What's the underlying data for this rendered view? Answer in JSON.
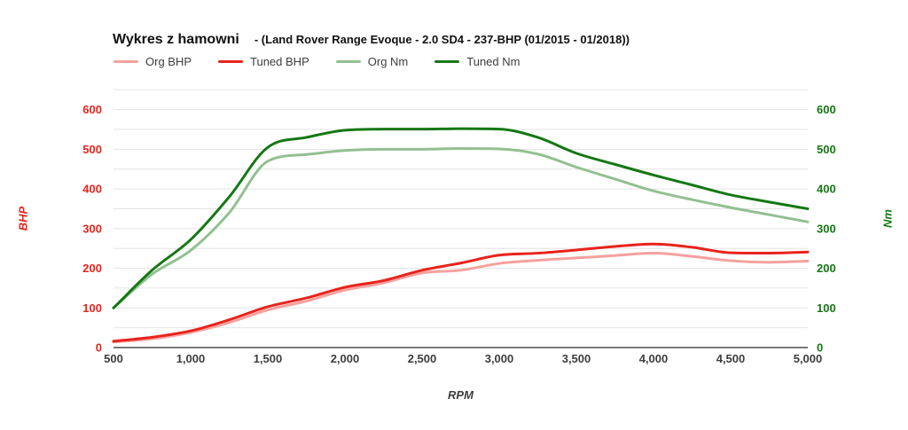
{
  "title": {
    "main": "Wykres z hamowni",
    "sub": "- (Land Rover Range Evoque - 2.0 SD4 - 237-BHP (01/2015 - 01/2018))"
  },
  "colors": {
    "org_bhp": "#F5A19E",
    "tuned_bhp": "#E8231C",
    "org_nm": "#93C091",
    "tuned_nm": "#147814",
    "gridline": "#E4E4E4",
    "baseline": "#7A7A7A",
    "x_tick_text": "#3D3D3D",
    "legend_text": "#3D3D3D"
  },
  "legend": [
    {
      "label": "Org BHP",
      "color": "#F5A19E"
    },
    {
      "label": "Tuned BHP",
      "color": "#E8231C"
    },
    {
      "label": "Org Nm",
      "color": "#93C091"
    },
    {
      "label": "Tuned Nm",
      "color": "#147814"
    }
  ],
  "chart_data": {
    "type": "line",
    "title": "Wykres z hamowni - (Land Rover Range Evoque - 2.0 SD4 - 237-BHP (01/2015 - 01/2018))",
    "xlabel": "RPM",
    "x": [
      500,
      750,
      1000,
      1250,
      1500,
      1750,
      2000,
      2250,
      2500,
      2750,
      3000,
      3250,
      3500,
      3750,
      4000,
      4250,
      4500,
      4750,
      5000
    ],
    "x_ticks": [
      "500",
      "1,000",
      "1,500",
      "2,000",
      "2,500",
      "3,000",
      "3,500",
      "4,000",
      "4,500",
      "5,000"
    ],
    "x_tick_values": [
      500,
      1000,
      1500,
      2000,
      2500,
      3000,
      3500,
      4000,
      4500,
      5000
    ],
    "grid": true,
    "legend_position": "top",
    "y_left": {
      "label": "BHP",
      "min": 0,
      "max": 650,
      "tick_step": 100,
      "grid_step": 50,
      "color": "#E8231C",
      "ticks": [
        "0",
        "100",
        "200",
        "300",
        "400",
        "500",
        "600"
      ]
    },
    "y_right": {
      "label": "Nm",
      "min": 0,
      "max": 650,
      "tick_step": 100,
      "grid_step": 50,
      "color": "#147814",
      "ticks": [
        "0",
        "100",
        "200",
        "300",
        "400",
        "500",
        "600"
      ]
    },
    "series": [
      {
        "name": "Org BHP",
        "axis": "left",
        "color": "#F5A19E",
        "values": [
          14,
          22,
          38,
          63,
          95,
          117,
          145,
          163,
          188,
          195,
          212,
          220,
          226,
          232,
          238,
          230,
          219,
          215,
          218
        ]
      },
      {
        "name": "Tuned BHP",
        "axis": "left",
        "color": "#E8231C",
        "values": [
          16,
          26,
          42,
          70,
          103,
          125,
          152,
          169,
          195,
          213,
          233,
          238,
          246,
          255,
          261,
          253,
          239,
          238,
          241
        ]
      },
      {
        "name": "Org Nm",
        "axis": "right",
        "color": "#93C091",
        "values": [
          100,
          185,
          245,
          340,
          470,
          487,
          497,
          500,
          500,
          502,
          501,
          488,
          455,
          425,
          395,
          373,
          353,
          335,
          317
        ]
      },
      {
        "name": "Tuned Nm",
        "axis": "right",
        "color": "#147814",
        "values": [
          100,
          195,
          272,
          380,
          505,
          530,
          548,
          551,
          551,
          552,
          551,
          530,
          490,
          462,
          435,
          410,
          385,
          367,
          350
        ]
      }
    ]
  }
}
